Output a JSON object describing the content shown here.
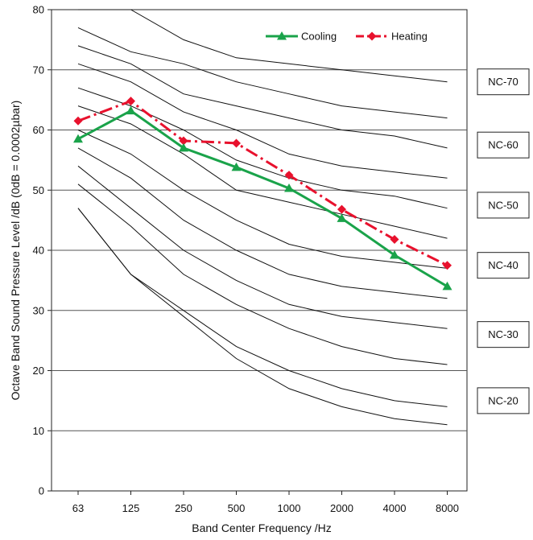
{
  "chart_data": {
    "type": "line",
    "xlabel": "Band Center Frequency /Hz",
    "ylabel": "Octave Band Sound Pressure Level /dB (0dB = 0.0002µbar)",
    "categories": [
      "63",
      "125",
      "250",
      "500",
      "1000",
      "2000",
      "4000",
      "8000"
    ],
    "ylim": [
      0,
      80
    ],
    "yticks": [
      0,
      10,
      20,
      30,
      40,
      50,
      60,
      70,
      80
    ],
    "grid": "horizontal",
    "legend_position": "top-right",
    "series": [
      {
        "name": "Cooling",
        "color": "#1aa34a",
        "marker": "triangle",
        "style": "solid",
        "values": [
          58.5,
          63.2,
          57.0,
          53.8,
          50.3,
          45.3,
          39.2,
          34.0
        ]
      },
      {
        "name": "Heating",
        "color": "#e8112d",
        "marker": "diamond",
        "style": "dash-dot",
        "values": [
          61.5,
          64.8,
          58.2,
          57.8,
          52.5,
          46.8,
          41.8,
          37.5
        ]
      }
    ],
    "nc_curves": [
      {
        "label": "",
        "values": [
          80,
          80,
          75,
          72,
          71,
          70,
          69,
          68
        ]
      },
      {
        "label": "NC-70",
        "values": [
          77,
          73,
          71,
          68,
          66,
          64,
          63,
          62
        ]
      },
      {
        "label": "",
        "values": [
          74,
          71,
          66,
          64,
          62,
          60,
          59,
          57
        ]
      },
      {
        "label": "",
        "values": [
          71,
          68,
          63,
          60,
          56,
          54,
          53,
          52
        ]
      },
      {
        "label": "NC-60",
        "values": [
          67,
          64,
          60,
          55,
          52,
          50,
          49,
          47
        ]
      },
      {
        "label": "",
        "values": [
          64,
          61,
          56,
          50,
          48,
          46,
          44,
          42
        ]
      },
      {
        "label": "NC-50",
        "values": [
          60,
          56,
          50,
          45,
          41,
          39,
          38,
          37
        ]
      },
      {
        "label": "",
        "values": [
          57,
          52,
          45,
          40,
          36,
          34,
          33,
          32
        ]
      },
      {
        "label": "NC-40",
        "values": [
          54,
          47,
          40,
          35,
          31,
          29,
          28,
          27
        ]
      },
      {
        "label": "",
        "values": [
          51,
          44,
          36,
          31,
          27,
          24,
          22,
          21
        ]
      },
      {
        "label": "NC-30",
        "values": [
          47,
          36,
          30,
          24,
          20,
          17,
          15,
          14
        ]
      },
      {
        "label": "",
        "values": [
          47,
          36,
          29,
          22,
          17,
          14,
          12,
          11
        ]
      }
    ],
    "nc_boxes": [
      {
        "label": "NC-70",
        "level": 68
      },
      {
        "label": "NC-60",
        "level": 57.5
      },
      {
        "label": "NC-50",
        "level": 47.5
      },
      {
        "label": "NC-40",
        "level": 37.5
      },
      {
        "label": "NC-30",
        "level": 26
      },
      {
        "label": "NC-20",
        "level": 15
      }
    ]
  }
}
